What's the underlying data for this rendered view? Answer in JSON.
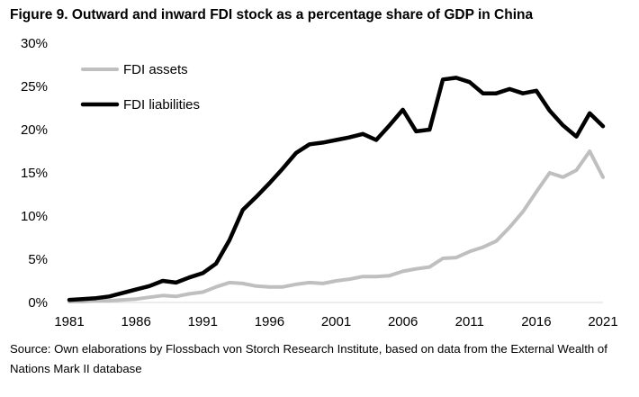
{
  "title": "Figure 9. Outward and inward FDI stock as a percentage share of GDP in China",
  "source": "Source: Own elaborations by Flossbach von Storch Research Institute, based on data from the External Wealth of Nations Mark II database",
  "chart_data": {
    "type": "line",
    "title": "Figure 9. Outward and inward FDI stock as a percentage share of GDP in China",
    "xlabel": "",
    "ylabel": "",
    "x": [
      1981,
      1982,
      1983,
      1984,
      1985,
      1986,
      1987,
      1988,
      1989,
      1990,
      1991,
      1992,
      1993,
      1994,
      1995,
      1996,
      1997,
      1998,
      1999,
      2000,
      2001,
      2002,
      2003,
      2004,
      2005,
      2006,
      2007,
      2008,
      2009,
      2010,
      2011,
      2012,
      2013,
      2014,
      2015,
      2016,
      2017,
      2018,
      2019,
      2020,
      2021
    ],
    "xlim": [
      1981,
      2021
    ],
    "ylim": [
      0,
      30
    ],
    "x_ticks": [
      1981,
      1986,
      1991,
      1996,
      2001,
      2006,
      2011,
      2016,
      2021
    ],
    "x_tick_labels": [
      "1981",
      "1986",
      "1991",
      "1996",
      "2001",
      "2006",
      "2011",
      "2016",
      "2021"
    ],
    "y_ticks": [
      0,
      5,
      10,
      15,
      20,
      25,
      30
    ],
    "y_tick_labels": [
      "0%",
      "5%",
      "10%",
      "15%",
      "20%",
      "25%",
      "30%"
    ],
    "grid": false,
    "legend_position": "top-left",
    "series": [
      {
        "name": "FDI assets",
        "color": "#bfbfbf",
        "values": [
          0.1,
          0.1,
          0.2,
          0.2,
          0.3,
          0.4,
          0.6,
          0.8,
          0.7,
          1.0,
          1.2,
          1.8,
          2.3,
          2.2,
          1.9,
          1.8,
          1.8,
          2.1,
          2.3,
          2.2,
          2.5,
          2.7,
          3.0,
          3.0,
          3.1,
          3.6,
          3.9,
          4.1,
          5.1,
          5.2,
          5.9,
          6.4,
          7.1,
          8.7,
          10.5,
          12.8,
          15.0,
          14.5,
          15.3,
          17.5,
          14.5
        ]
      },
      {
        "name": "FDI liabilities",
        "color": "#000000",
        "values": [
          0.3,
          0.4,
          0.5,
          0.7,
          1.1,
          1.5,
          1.9,
          2.5,
          2.3,
          2.9,
          3.4,
          4.5,
          7.2,
          10.7,
          12.2,
          13.8,
          15.5,
          17.3,
          18.3,
          18.5,
          18.8,
          19.1,
          19.5,
          18.8,
          20.5,
          22.3,
          19.8,
          20.0,
          25.8,
          26.0,
          25.5,
          24.2,
          24.2,
          24.7,
          24.2,
          24.5,
          22.2,
          20.5,
          19.2,
          21.9,
          20.4
        ]
      }
    ]
  }
}
